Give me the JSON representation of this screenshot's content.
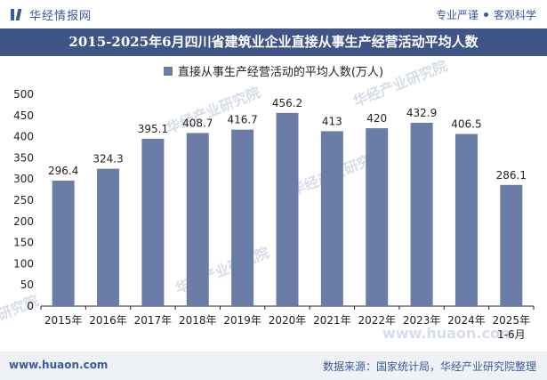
{
  "header": {
    "brand": "华经情报网",
    "tagline_left": "专业严谨",
    "tagline_right": "客观科学"
  },
  "title": "2015-2025年6月四川省建筑业企业直接从事生产经营活动平均人数",
  "footer": {
    "url": "www.huaon.com",
    "source": "数据来源：国家统计局，华经产业研究院整理"
  },
  "watermarks": [
    "华经产业研究院",
    "华经产业研究院",
    "华经产业研究院",
    "研究院",
    "华经产业研究院",
    "www.huaon.com"
  ],
  "colors": {
    "bar": "#6b7da6",
    "title_bg": "#3f5587",
    "accent": "#3a5a9a"
  },
  "chart_data": {
    "type": "bar",
    "categories": [
      "2015年",
      "2016年",
      "2017年",
      "2018年",
      "2019年",
      "2020年",
      "2021年",
      "2022年",
      "2023年",
      "2024年",
      "2025年\n1-6月"
    ],
    "series": [
      {
        "name": "直接从事生产经营活动的平均人数(万人)",
        "values": [
          296.4,
          324.3,
          395.1,
          408.7,
          416.7,
          456.2,
          413,
          420,
          432.9,
          406.5,
          286.1
        ]
      }
    ],
    "value_labels": [
      "296.4",
      "324.3",
      "395.1",
      "408.7",
      "416.7",
      "456.2",
      "413",
      "420",
      "432.9",
      "406.5",
      "286.1"
    ],
    "ylim": [
      0,
      500
    ],
    "yticks": [
      0,
      50,
      100,
      150,
      200,
      250,
      300,
      350,
      400,
      450,
      500
    ],
    "grid": false,
    "legend_position": "top-center"
  }
}
